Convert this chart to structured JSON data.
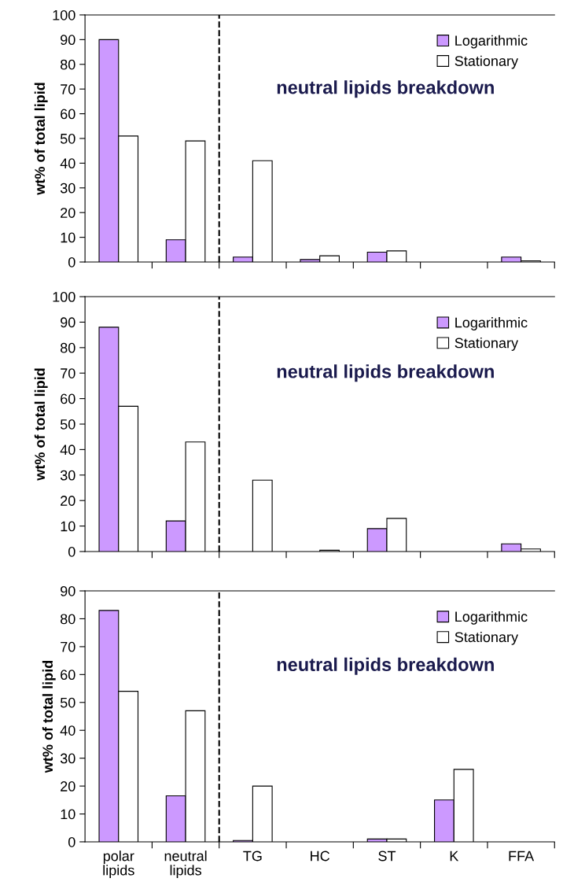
{
  "chart_data": [
    {
      "type": "bar",
      "ylabel": "wt% of total lipid",
      "categories": [
        null,
        null,
        null,
        null,
        null,
        null,
        null
      ],
      "ylim": [
        0,
        100
      ],
      "yticks": [
        0,
        10,
        20,
        30,
        40,
        50,
        60,
        70,
        80,
        90,
        100
      ],
      "grid": false,
      "legend": "top right",
      "series": [
        {
          "name": "Logarithmic",
          "color": "#cc99ff",
          "values": [
            90,
            9,
            2,
            1,
            4,
            0,
            2
          ]
        },
        {
          "name": "Stationary",
          "color": "#ffffff",
          "values": [
            51,
            49,
            41,
            2.5,
            4.5,
            0,
            0.5
          ]
        }
      ],
      "annotations": [
        "neutral lipids breakdown"
      ]
    },
    {
      "type": "bar",
      "ylabel": "wt% of total lipid",
      "categories": [
        null,
        null,
        null,
        null,
        null,
        null,
        null
      ],
      "ylim": [
        0,
        100
      ],
      "yticks": [
        0,
        10,
        20,
        30,
        40,
        50,
        60,
        70,
        80,
        90,
        100
      ],
      "grid": false,
      "legend": "top right",
      "series": [
        {
          "name": "Logarithmic",
          "color": "#cc99ff",
          "values": [
            88,
            12,
            0,
            0,
            9,
            0,
            3
          ]
        },
        {
          "name": "Stationary",
          "color": "#ffffff",
          "values": [
            57,
            43,
            28,
            0.5,
            13,
            0,
            1
          ]
        }
      ],
      "annotations": [
        "neutral lipids breakdown"
      ]
    },
    {
      "type": "bar",
      "ylabel": "wt% of total lipid",
      "categories": [
        "polar\nlipids",
        "neutral\nlipids",
        "TG",
        "HC",
        "ST",
        "K",
        "FFA"
      ],
      "ylim": [
        0,
        90
      ],
      "yticks": [
        0,
        10,
        20,
        30,
        40,
        50,
        60,
        70,
        80,
        90
      ],
      "grid": false,
      "legend": "top right",
      "series": [
        {
          "name": "Logarithmic",
          "color": "#cc99ff",
          "values": [
            83,
            16.5,
            0.5,
            0,
            1,
            15,
            0
          ]
        },
        {
          "name": "Stationary",
          "color": "#ffffff",
          "values": [
            54,
            47,
            20,
            0,
            1,
            26,
            0
          ]
        }
      ],
      "annotations": [
        "neutral lipids breakdown"
      ]
    }
  ]
}
